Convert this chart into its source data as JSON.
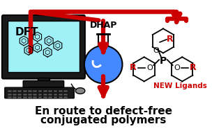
{
  "title_line1": "En route to defect-free",
  "title_line2": "conjugated polymers",
  "dhap_label": "DHAP",
  "dft_label": "DFT",
  "new_ligands_label": "NEW Ligands",
  "r_label": "R",
  "background_color": "#ffffff",
  "arrow_color": "#cc0000",
  "text_color": "#000000",
  "red_text_color": "#cc0000",
  "screen_color": "#a0f0f8",
  "flask_body_color": "#4488ff",
  "flask_glass_color": "#cceeee",
  "computer_body_color": "#1a1a1a",
  "figsize": [
    3.04,
    1.89
  ],
  "dpi": 100
}
